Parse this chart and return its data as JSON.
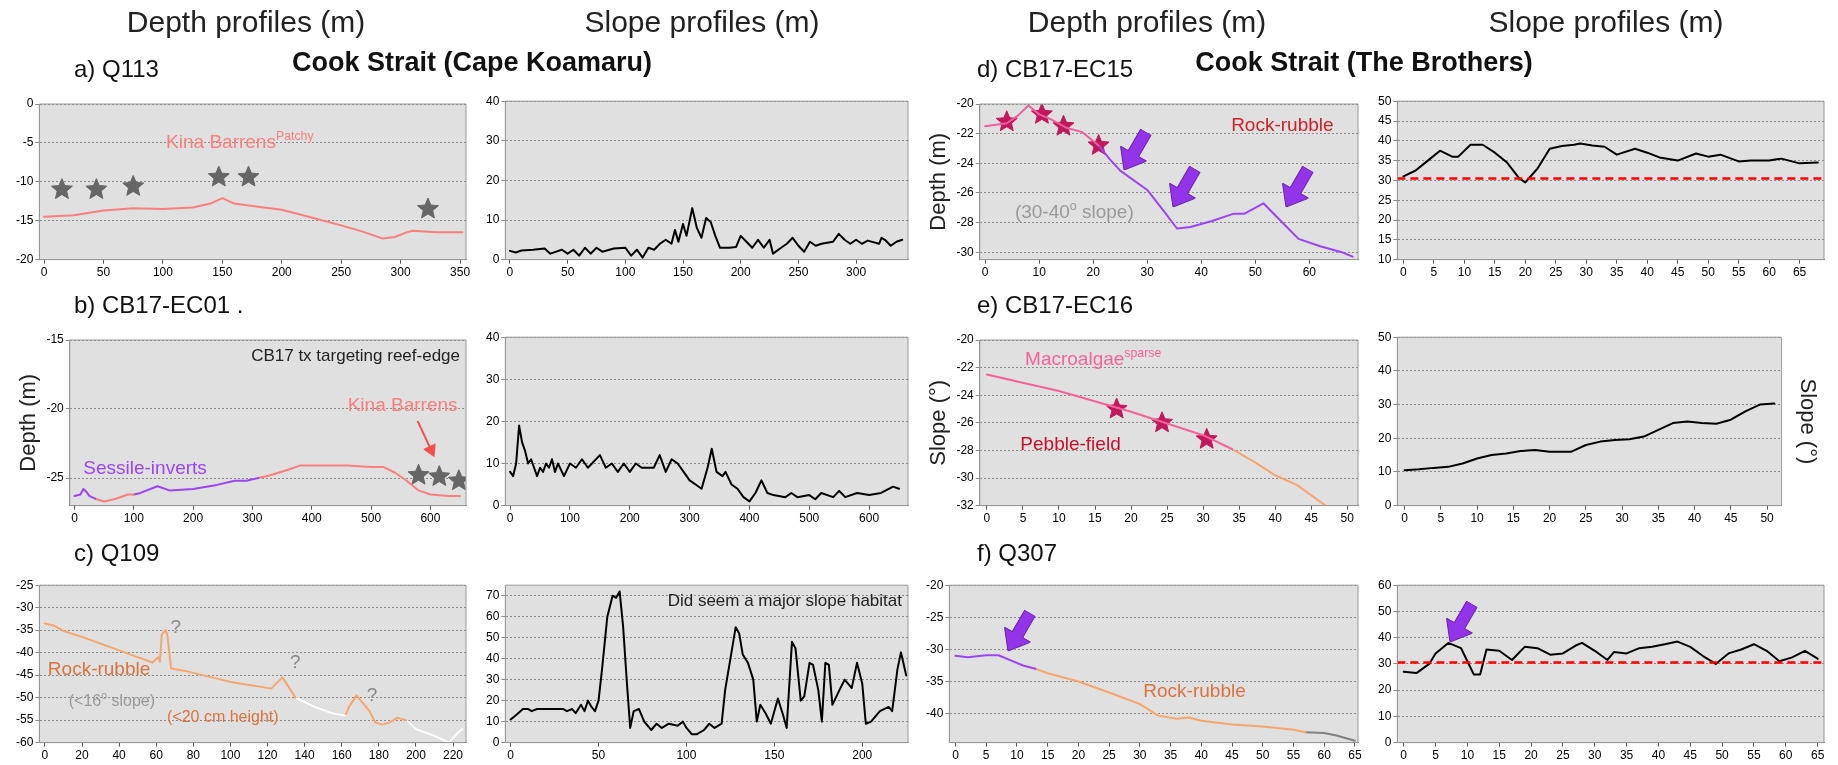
{
  "chart_data": [
    {
      "type": "line",
      "title": "a) Q113",
      "subtitle": "Depth profiles (m)",
      "xlim": [
        -4,
        355
      ],
      "xticks": [
        0,
        50,
        100,
        150,
        200,
        250,
        300,
        350
      ],
      "ylim": [
        -20,
        0
      ],
      "yticks": [
        -20,
        -15,
        -10,
        -5,
        0
      ],
      "grid": "y",
      "series": [
        {
          "type": "line",
          "color": "#f77f7f",
          "x": [
            0,
            25,
            50,
            75,
            100,
            125,
            140,
            150,
            160,
            180,
            200,
            225,
            250,
            270,
            285,
            295,
            305,
            310,
            330,
            352
          ],
          "values": [
            -14.5,
            -14.3,
            -13.7,
            -13.4,
            -13.5,
            -13.3,
            -12.8,
            -12.1,
            -12.8,
            -13.2,
            -13.6,
            -14.6,
            -15.6,
            -16.5,
            -17.3,
            -17.1,
            -16.5,
            -16.3,
            -16.5,
            -16.5
          ]
        },
        {
          "type": "scatter",
          "marker": "star",
          "color": "#666666",
          "x": [
            15,
            44,
            75,
            147,
            172,
            323
          ],
          "values": [
            -11,
            -11,
            -10.6,
            -9.4,
            -9.4,
            -13.5
          ]
        }
      ],
      "annotations": [
        "Kina Barrens$^{Patchy}$"
      ]
    },
    {
      "type": "line",
      "title": "Cook Strait (Cape Koamaru)",
      "subtitle": "Slope profiles (m)",
      "xlim": [
        -4,
        345
      ],
      "xticks": [
        0,
        50,
        100,
        150,
        200,
        250,
        300
      ],
      "ylim": [
        0,
        40
      ],
      "yticks": [
        0,
        10,
        20,
        30,
        40
      ],
      "grid": "y",
      "series": [
        {
          "type": "line",
          "color": "#000000",
          "x": [
            0,
            5,
            10,
            20,
            30,
            35,
            45,
            50,
            55,
            60,
            65,
            70,
            75,
            80,
            90,
            100,
            105,
            110,
            115,
            120,
            125,
            130,
            135,
            140,
            143,
            146,
            150,
            153,
            158,
            162,
            166,
            170,
            174,
            178,
            182,
            190,
            196,
            200,
            205,
            210,
            215,
            220,
            225,
            228,
            235,
            240,
            245,
            250,
            255,
            260,
            265,
            270,
            280,
            285,
            290,
            295,
            300,
            305,
            310,
            320,
            322,
            325,
            330,
            335,
            340
          ],
          "values": [
            2.2,
            1.8,
            2.3,
            2.5,
            2.8,
            1.5,
            2.5,
            1.5,
            2.5,
            1,
            3,
            1.5,
            3,
            2,
            2.8,
            3,
            1,
            2.5,
            0.5,
            3,
            2.5,
            4,
            5,
            4,
            7.5,
            4.5,
            9,
            6,
            13,
            8,
            5.5,
            10.5,
            9.5,
            6,
            3,
            3,
            3.2,
            6,
            4.5,
            3,
            5,
            3,
            5,
            1.5,
            3,
            4,
            5.5,
            3.5,
            2,
            4.5,
            3.5,
            4,
            4.5,
            6.5,
            5,
            4,
            5,
            4,
            4.8,
            4,
            5.5,
            5,
            3.5,
            4.5,
            5
          ]
        }
      ]
    },
    {
      "type": "line",
      "title": "d) CB17-EC15",
      "subtitle": "Depth profiles (m)",
      "ylabel": "Depth (m)",
      "xlim": [
        -1,
        69
      ],
      "xticks": [
        0,
        10,
        20,
        30,
        40,
        50,
        60
      ],
      "ylim": [
        -30.5,
        -20
      ],
      "yticks": [
        -30,
        -28,
        -26,
        -24,
        -22,
        -20
      ],
      "grid": "y",
      "series": [
        {
          "type": "line",
          "color": "#e8609c",
          "x": [
            0,
            4,
            6,
            8,
            10,
            12,
            15,
            18,
            21
          ],
          "values": [
            -21.5,
            -21.3,
            -20.8,
            -20.1,
            -20.7,
            -21,
            -21.6,
            -21.9,
            -22.8
          ]
        },
        {
          "type": "line",
          "color": "#9b45f2",
          "x": [
            21,
            23,
            25,
            30,
            33,
            35.5,
            38,
            42,
            46,
            48,
            51.5,
            55,
            58,
            62,
            66,
            68
          ],
          "values": [
            -22.8,
            -23.7,
            -24.5,
            -25.8,
            -27.2,
            -28.4,
            -28.3,
            -27.9,
            -27.4,
            -27.4,
            -26.7,
            -28,
            -29.1,
            -29.6,
            -30,
            -30.3
          ]
        },
        {
          "type": "scatter",
          "marker": "star",
          "color": "#c2185b",
          "x": [
            4,
            10.5,
            14.5,
            21
          ],
          "values": [
            -21.2,
            -20.7,
            -21.5,
            -22.8
          ]
        }
      ],
      "annotations": [
        "Rock-rubble",
        "(30-40$^{o}$ slope)"
      ]
    },
    {
      "type": "line",
      "title": "Cook Strait (The Brothers)",
      "subtitle": "Slope profiles (m)",
      "xlim": [
        -1,
        69
      ],
      "xticks": [
        0,
        5,
        10,
        15,
        20,
        25,
        30,
        35,
        40,
        45,
        50,
        55,
        60,
        65
      ],
      "ylim": [
        10,
        50
      ],
      "yticks": [
        10,
        15,
        20,
        25,
        30,
        35,
        40,
        45,
        50
      ],
      "grid": "y",
      "series": [
        {
          "type": "line",
          "color": "#000000",
          "x": [
            0,
            2,
            4,
            6,
            8,
            9,
            11,
            13,
            15,
            17,
            19,
            20,
            22,
            24,
            26,
            28,
            29,
            31,
            33,
            35,
            38,
            40,
            42,
            45,
            48,
            50,
            52,
            55,
            57,
            60,
            62,
            65,
            68
          ],
          "values": [
            31,
            32.5,
            35,
            37.5,
            36,
            36,
            39,
            39,
            37,
            34.5,
            30.5,
            29.5,
            33,
            38,
            38.7,
            39,
            39.3,
            38.8,
            38.5,
            36.5,
            38,
            37,
            35.8,
            35,
            36.8,
            36,
            36.5,
            34.8,
            35,
            35,
            35.5,
            34.3,
            34.5
          ]
        }
      ],
      "ref_lines": [
        {
          "axis": "y",
          "value": 30.5,
          "color": "#ff0000",
          "line_style": "dashed"
        }
      ]
    },
    {
      "type": "line",
      "title": "b) CB17-EC01 .",
      "ylabel": "Depth (m)",
      "xlim": [
        -8,
        660
      ],
      "xticks": [
        0,
        100,
        200,
        300,
        400,
        500,
        600
      ],
      "ylim": [
        -27,
        -15
      ],
      "yticks": [
        -25,
        -20,
        -15
      ],
      "grid": "y",
      "series": [
        {
          "type": "line",
          "color": "#9b45f2",
          "x": [
            0,
            10,
            15,
            20,
            25,
            35
          ],
          "values": [
            -26.3,
            -26.2,
            -25.8,
            -26,
            -26.3,
            -26.5
          ]
        },
        {
          "type": "line",
          "color": "#f77f7f",
          "x": [
            35,
            50,
            70,
            90,
            100
          ],
          "values": [
            -26.5,
            -26.7,
            -26.5,
            -26.2,
            -26.2
          ]
        },
        {
          "type": "line",
          "color": "#9b45f2",
          "x": [
            100,
            110,
            140,
            160,
            200,
            240,
            270,
            290,
            310
          ],
          "values": [
            -26.2,
            -26.1,
            -25.6,
            -25.9,
            -25.8,
            -25.5,
            -25.2,
            -25.2,
            -25
          ]
        },
        {
          "type": "line",
          "color": "#f77f7f",
          "x": [
            310,
            330,
            360,
            380,
            420,
            460,
            500,
            520,
            540,
            560,
            580,
            600,
            630,
            650
          ],
          "values": [
            -25,
            -24.8,
            -24.4,
            -24.1,
            -24.1,
            -24.1,
            -24.2,
            -24.2,
            -24.6,
            -25.2,
            -25.9,
            -26.2,
            -26.3,
            -26.3
          ]
        },
        {
          "type": "scatter",
          "marker": "star",
          "color": "#666666",
          "x": [
            580,
            615,
            648
          ],
          "values": [
            -24.8,
            -24.9,
            -25.2
          ]
        }
      ],
      "annotations": [
        "CB17 tx targeting reef-edge",
        "Kina Barrens",
        "Sessile-inverts"
      ]
    },
    {
      "type": "line",
      "xlim": [
        -8,
        665
      ],
      "xticks": [
        0,
        100,
        200,
        300,
        400,
        500,
        600
      ],
      "ylim": [
        0,
        40
      ],
      "yticks": [
        0,
        10,
        20,
        30,
        40
      ],
      "grid": "y",
      "series": [
        {
          "type": "line",
          "color": "#000000",
          "x": [
            0,
            5,
            10,
            15,
            20,
            25,
            30,
            35,
            40,
            45,
            50,
            55,
            60,
            65,
            70,
            75,
            80,
            90,
            100,
            110,
            120,
            130,
            150,
            160,
            170,
            180,
            190,
            200,
            210,
            220,
            240,
            250,
            260,
            270,
            280,
            290,
            300,
            310,
            320,
            330,
            337,
            345,
            355,
            360,
            370,
            380,
            390,
            400,
            410,
            420,
            430,
            440,
            460,
            470,
            480,
            500,
            510,
            520,
            540,
            550,
            560,
            580,
            600,
            620,
            640,
            650
          ],
          "values": [
            8,
            7,
            10,
            19,
            15,
            13,
            10,
            11,
            9,
            7,
            9,
            8,
            10,
            9,
            11,
            8,
            10,
            7,
            10,
            9,
            11,
            9,
            12,
            9,
            10,
            8,
            10,
            8,
            10,
            9,
            9,
            12,
            8,
            11,
            10,
            8,
            6,
            5,
            4,
            9,
            13.5,
            8,
            7,
            8,
            5,
            4,
            2,
            1,
            3,
            6,
            3,
            2.5,
            2,
            3,
            2,
            2.5,
            1.5,
            3,
            2,
            3.5,
            2,
            3,
            2.5,
            3,
            4.5,
            4
          ]
        }
      ]
    },
    {
      "type": "line",
      "title": "e) CB17-EC16",
      "ylabel": "Slope (°)",
      "xlim": [
        -1,
        51.5
      ],
      "xticks": [
        0,
        5,
        10,
        15,
        20,
        25,
        30,
        35,
        40,
        45,
        50
      ],
      "ylim": [
        -32,
        -20
      ],
      "yticks": [
        -32,
        -30,
        -28,
        -26,
        -24,
        -22,
        -20
      ],
      "grid": "y",
      "series": [
        {
          "type": "line",
          "color": "#f5629a",
          "x": [
            0,
            10,
            20,
            30,
            34
          ],
          "values": [
            -22.5,
            -23.7,
            -25.2,
            -26.9,
            -27.9
          ]
        },
        {
          "type": "line",
          "color": "#f5a66e",
          "x": [
            34,
            37,
            40,
            43,
            47
          ],
          "values": [
            -27.9,
            -28.8,
            -29.8,
            -30.5,
            -32
          ]
        },
        {
          "type": "scatter",
          "marker": "star",
          "color": "#c2185b",
          "x": [
            18,
            24.3,
            30.5
          ],
          "values": [
            -25,
            -26,
            -27.2
          ]
        }
      ],
      "annotations": [
        "Macroalgae$^{sparse}$",
        "Pebble-field"
      ]
    },
    {
      "type": "line",
      "y2label": "Slope (°)",
      "xlim": [
        -1,
        52
      ],
      "xticks": [
        0,
        5,
        10,
        15,
        20,
        25,
        30,
        35,
        40,
        45,
        50
      ],
      "ylim": [
        0,
        50
      ],
      "yticks": [
        0,
        10,
        20,
        30,
        40,
        50
      ],
      "grid": "y",
      "series": [
        {
          "type": "line",
          "color": "#000000",
          "x": [
            0,
            2,
            4,
            6,
            8,
            10,
            12,
            14,
            16,
            18,
            20,
            23,
            25,
            27,
            29,
            31,
            33,
            35,
            37,
            39,
            41,
            43,
            45,
            47,
            49,
            51
          ],
          "values": [
            10.5,
            10.8,
            11.2,
            11.5,
            12.5,
            14,
            15,
            15.5,
            16.2,
            16.5,
            16,
            16,
            18,
            19,
            19.5,
            19.7,
            20.5,
            22.5,
            24.5,
            25,
            24.5,
            24.3,
            25.5,
            28,
            30,
            30.3
          ]
        }
      ]
    },
    {
      "type": "line",
      "title": "c) Q109",
      "xlim": [
        -3,
        227
      ],
      "xticks": [
        0,
        20,
        40,
        60,
        80,
        100,
        120,
        140,
        160,
        180,
        200,
        220
      ],
      "ylim": [
        -60,
        -25
      ],
      "yticks": [
        -60,
        -55,
        -50,
        -45,
        -40,
        -35,
        -30,
        -25
      ],
      "grid": "y",
      "series": [
        {
          "type": "line",
          "color": "#f5a66e",
          "x": [
            0,
            5,
            10,
            20,
            30,
            40,
            50,
            58,
            61,
            62,
            63,
            65,
            66,
            68,
            75,
            85,
            100,
            115,
            122,
            128,
            132,
            135
          ],
          "values": [
            -33.5,
            -34,
            -35.2,
            -36.5,
            -38,
            -39.5,
            -41,
            -42.2,
            -41,
            -42,
            -36,
            -35,
            -36,
            -43.5,
            -44,
            -45,
            -46.5,
            -47.5,
            -48,
            -45.5,
            -48,
            -50
          ]
        },
        {
          "type": "line",
          "color": "#ffffff",
          "x": [
            135,
            145,
            155,
            162
          ],
          "values": [
            -50,
            -52,
            -53.5,
            -54
          ]
        },
        {
          "type": "line",
          "color": "#f5a66e",
          "x": [
            162,
            164,
            168,
            172,
            175,
            178,
            182,
            186,
            190,
            195
          ],
          "values": [
            -54,
            -52,
            -49.5,
            -51.5,
            -53,
            -55.5,
            -56,
            -55.5,
            -54.5,
            -55
          ]
        },
        {
          "type": "line",
          "color": "#ffffff",
          "x": [
            195,
            200,
            210,
            218,
            222,
            225
          ],
          "values": [
            -55,
            -57,
            -58.5,
            -60,
            -58,
            -57
          ]
        }
      ],
      "annotations": [
        "?",
        "?",
        "?",
        "Rock-rubble",
        "(<16$^{o}$ slope)",
        "(<20 cm height)"
      ]
    },
    {
      "type": "line",
      "xlim": [
        -3,
        226
      ],
      "xticks": [
        0,
        50,
        100,
        150,
        200
      ],
      "ylim": [
        0,
        75
      ],
      "yticks": [
        0,
        10,
        20,
        30,
        40,
        50,
        60,
        70
      ],
      "grid": "y",
      "series": [
        {
          "type": "line",
          "color": "#000000",
          "x": [
            0,
            3,
            7,
            10,
            12,
            15,
            20,
            25,
            30,
            32,
            35,
            37,
            40,
            42,
            44,
            46,
            48,
            50,
            52,
            55,
            58,
            60,
            62,
            64,
            66,
            68,
            70,
            73,
            76,
            80,
            83,
            86,
            90,
            95,
            98,
            100,
            103,
            106,
            110,
            113,
            116,
            120,
            122,
            125,
            128,
            130,
            132,
            135,
            138,
            140,
            142,
            145,
            148,
            152,
            155,
            157,
            160,
            162,
            165,
            167,
            170,
            172,
            175,
            177,
            179,
            181,
            183,
            187,
            190,
            194,
            197,
            200,
            202,
            205,
            210,
            215,
            217,
            220,
            222,
            225
          ],
          "values": [
            11,
            13,
            16,
            16,
            15,
            16,
            16,
            16,
            16,
            15,
            16,
            14,
            18,
            15,
            20,
            17,
            15,
            20,
            35,
            60,
            70,
            69,
            72,
            55,
            30,
            7,
            15,
            16,
            10,
            6,
            9,
            7,
            9,
            8,
            10,
            7,
            4,
            4,
            6,
            9,
            7,
            9,
            25,
            40,
            55,
            52,
            42,
            38,
            30,
            10,
            18,
            14,
            9,
            21,
            13,
            7,
            48,
            45,
            20,
            22,
            38,
            37,
            25,
            10,
            38,
            37,
            18,
            25,
            30,
            26,
            38,
            28,
            9,
            10,
            15,
            17,
            15,
            35,
            43,
            32
          ]
        }
      ],
      "annotations": [
        "Did seem a major slope habitat"
      ]
    },
    {
      "type": "line",
      "title": "f) Q307",
      "xlim": [
        -1,
        65.5
      ],
      "xticks": [
        0,
        5,
        10,
        15,
        20,
        25,
        30,
        35,
        40,
        45,
        50,
        55,
        60,
        65
      ],
      "ylim": [
        -44.5,
        -20
      ],
      "yticks": [
        -40,
        -35,
        -30,
        -25,
        -20
      ],
      "grid": "y",
      "series": [
        {
          "type": "line",
          "color": "#9b45f2",
          "x": [
            0,
            2,
            5,
            7,
            9,
            11,
            13
          ],
          "values": [
            -31,
            -31.2,
            -30.9,
            -30.9,
            -31.7,
            -32.5,
            -33
          ]
        },
        {
          "type": "line",
          "color": "#f5a66e",
          "x": [
            13,
            15,
            20,
            25,
            30,
            33,
            36,
            38,
            40,
            45,
            50,
            55,
            57
          ],
          "values": [
            -33,
            -33.7,
            -35,
            -36.7,
            -38.5,
            -40.3,
            -40.8,
            -40.6,
            -41.1,
            -41.7,
            -42,
            -42.5,
            -42.9
          ]
        },
        {
          "type": "line",
          "color": "#808080",
          "x": [
            57,
            60,
            62,
            65
          ],
          "values": [
            -42.9,
            -43,
            -43.4,
            -44.2
          ]
        }
      ],
      "annotations": [
        "Rock-rubble"
      ]
    },
    {
      "type": "line",
      "xlim": [
        -1,
        66
      ],
      "xticks": [
        0,
        5,
        10,
        15,
        20,
        25,
        30,
        35,
        40,
        45,
        50,
        55,
        60,
        65
      ],
      "ylim": [
        0,
        60
      ],
      "yticks": [
        0,
        10,
        20,
        30,
        40,
        50,
        60
      ],
      "grid": "y",
      "series": [
        {
          "type": "line",
          "color": "#000000",
          "x": [
            0,
            2,
            4,
            5,
            7,
            9,
            10,
            11,
            12,
            13,
            15,
            17,
            19,
            21,
            23,
            25,
            27,
            28,
            30,
            32,
            33,
            35,
            37,
            39,
            41,
            43,
            45,
            47,
            49,
            51,
            53,
            55,
            57,
            59,
            61,
            63,
            65
          ],
          "values": [
            27,
            26.5,
            30,
            34,
            38,
            36,
            31,
            26,
            26,
            35.5,
            35,
            31.5,
            36.5,
            36,
            33.5,
            34,
            37,
            38,
            35,
            31.5,
            34.5,
            34,
            36,
            36.5,
            37.5,
            38.5,
            36.5,
            33,
            30,
            34,
            35.5,
            37.5,
            35,
            31,
            32.5,
            35,
            32
          ]
        }
      ],
      "ref_lines": [
        {
          "axis": "y",
          "value": 30.5,
          "color": "#ff0000",
          "line_style": "dashed"
        }
      ]
    }
  ]
}
